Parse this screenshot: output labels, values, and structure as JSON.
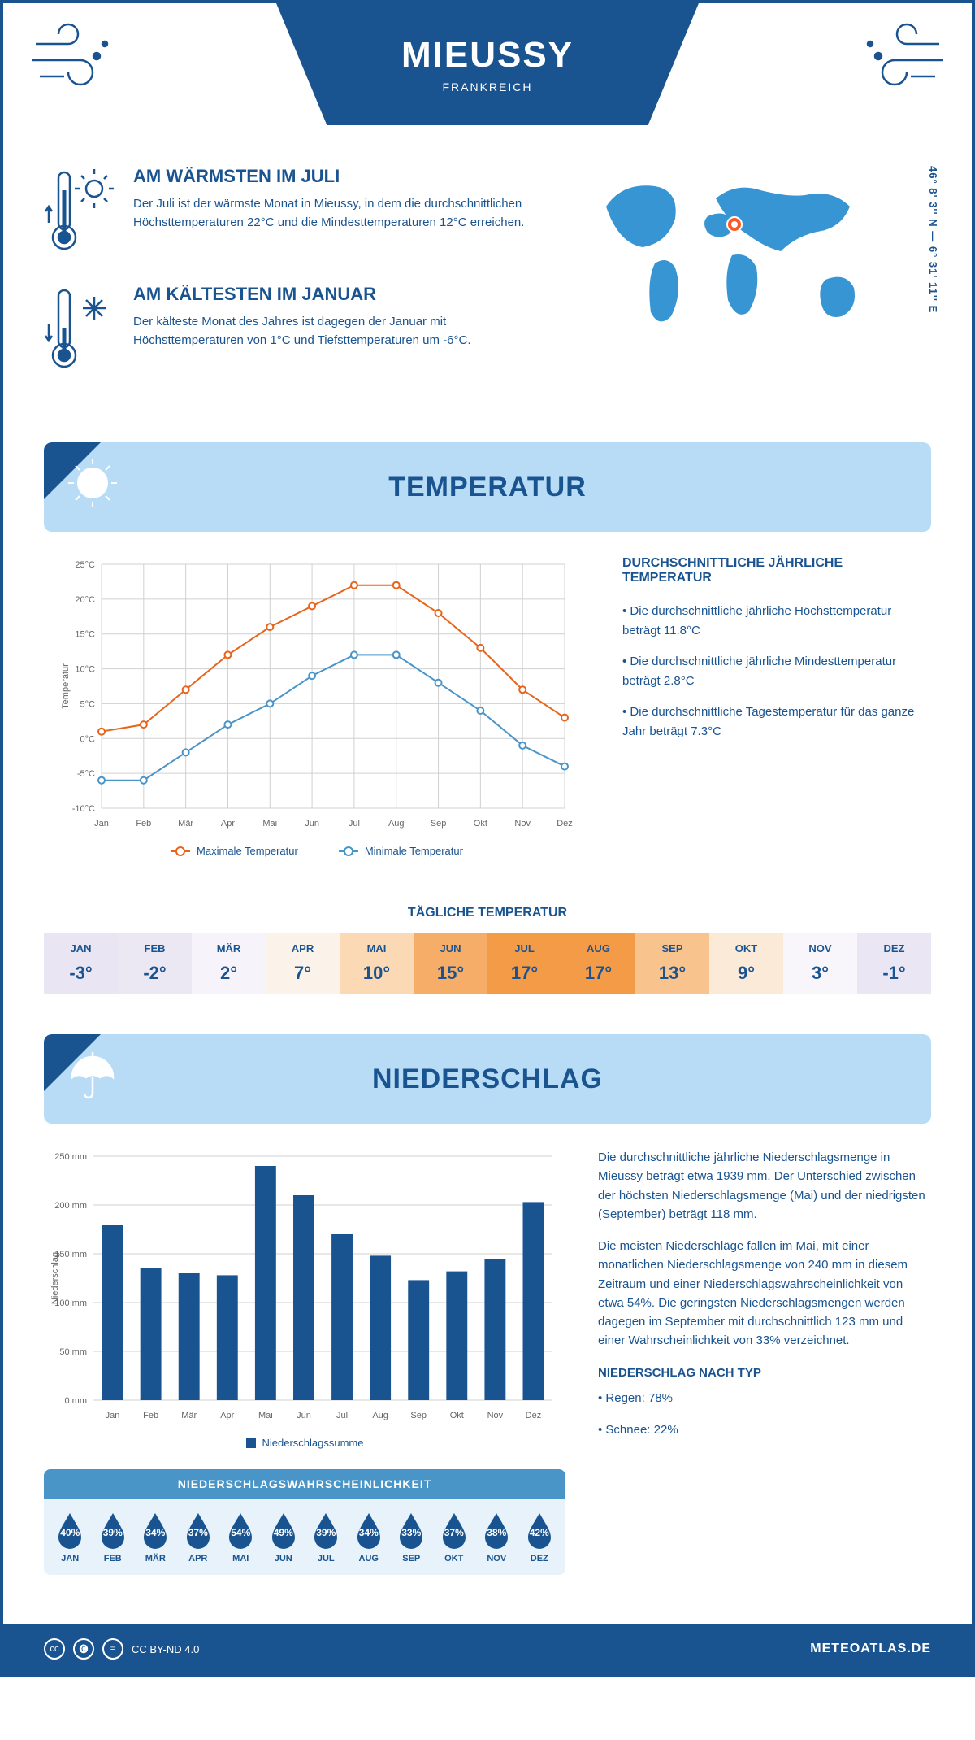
{
  "header": {
    "title": "MIEUSSY",
    "subtitle": "FRANKREICH",
    "coordinates": "46° 8' 3'' N — 6° 31' 11'' E"
  },
  "facts": {
    "warmest": {
      "title": "AM WÄRMSTEN IM JULI",
      "text": "Der Juli ist der wärmste Monat in Mieussy, in dem die durchschnittlichen Höchsttemperaturen 22°C und die Mindesttemperaturen 12°C erreichen."
    },
    "coldest": {
      "title": "AM KÄLTESTEN IM JANUAR",
      "text": "Der kälteste Monat des Jahres ist dagegen der Januar mit Höchsttemperaturen von 1°C und Tiefsttemperaturen um -6°C."
    }
  },
  "temperature": {
    "banner_title": "TEMPERATUR",
    "chart": {
      "months": [
        "Jan",
        "Feb",
        "Mär",
        "Apr",
        "Mai",
        "Jun",
        "Jul",
        "Aug",
        "Sep",
        "Okt",
        "Nov",
        "Dez"
      ],
      "max_series": [
        1,
        2,
        7,
        12,
        16,
        19,
        22,
        22,
        18,
        13,
        7,
        3
      ],
      "min_series": [
        -6,
        -6,
        -2,
        2,
        5,
        9,
        12,
        12,
        8,
        4,
        -1,
        -4
      ],
      "ylabel": "Temperatur",
      "ylim": [
        -10,
        25
      ],
      "ytick_step": 5,
      "max_color": "#e8641b",
      "min_color": "#4a95c8",
      "grid_color": "#d0d0d0",
      "background": "#ffffff",
      "marker_radius": 4,
      "line_width": 2,
      "font_size": 11
    },
    "legend": {
      "max": "Maximale Temperatur",
      "min": "Minimale Temperatur"
    },
    "summary": {
      "title": "DURCHSCHNITTLICHE JÄHRLICHE TEMPERATUR",
      "bullet1": "• Die durchschnittliche jährliche Höchsttemperatur beträgt 11.8°C",
      "bullet2": "• Die durchschnittliche jährliche Mindesttemperatur beträgt 2.8°C",
      "bullet3": "• Die durchschnittliche Tagestemperatur für das ganze Jahr beträgt 7.3°C"
    },
    "daily": {
      "title": "TÄGLICHE TEMPERATUR",
      "months": [
        "JAN",
        "FEB",
        "MÄR",
        "APR",
        "MAI",
        "JUN",
        "JUL",
        "AUG",
        "SEP",
        "OKT",
        "NOV",
        "DEZ"
      ],
      "values": [
        "-3°",
        "-2°",
        "2°",
        "7°",
        "10°",
        "15°",
        "17°",
        "17°",
        "13°",
        "9°",
        "3°",
        "-1°"
      ],
      "colors": [
        "#e9e5f2",
        "#ebe7f3",
        "#f6f4fa",
        "#fbf2ea",
        "#fbd9b4",
        "#f6ad67",
        "#f39b47",
        "#f39b47",
        "#f9c38e",
        "#fcead9",
        "#f8f6fb",
        "#eae6f3"
      ]
    }
  },
  "precipitation": {
    "banner_title": "NIEDERSCHLAG",
    "chart": {
      "months": [
        "Jan",
        "Feb",
        "Mär",
        "Apr",
        "Mai",
        "Jun",
        "Jul",
        "Aug",
        "Sep",
        "Okt",
        "Nov",
        "Dez"
      ],
      "values": [
        180,
        135,
        130,
        128,
        240,
        210,
        170,
        148,
        123,
        132,
        145,
        203
      ],
      "ylabel": "Niederschlag",
      "ylim": [
        0,
        250
      ],
      "ytick_step": 50,
      "bar_color": "#1a5490",
      "grid_color": "#d0d0d0",
      "bar_width_ratio": 0.55,
      "font_size": 11,
      "legend_label": "Niederschlagssumme"
    },
    "text": {
      "p1": "Die durchschnittliche jährliche Niederschlagsmenge in Mieussy beträgt etwa 1939 mm. Der Unterschied zwischen der höchsten Niederschlagsmenge (Mai) und der niedrigsten (September) beträgt 118 mm.",
      "p2": "Die meisten Niederschläge fallen im Mai, mit einer monatlichen Niederschlagsmenge von 240 mm in diesem Zeitraum und einer Niederschlagswahrscheinlichkeit von etwa 54%. Die geringsten Niederschlagsmengen werden dagegen im September mit durchschnittlich 123 mm und einer Wahrscheinlichkeit von 33% verzeichnet.",
      "type_title": "NIEDERSCHLAG NACH TYP",
      "type1": "• Regen: 78%",
      "type2": "• Schnee: 22%"
    },
    "probability": {
      "title": "NIEDERSCHLAGSWAHRSCHEINLICHKEIT",
      "months": [
        "JAN",
        "FEB",
        "MÄR",
        "APR",
        "MAI",
        "JUN",
        "JUL",
        "AUG",
        "SEP",
        "OKT",
        "NOV",
        "DEZ"
      ],
      "values": [
        "40%",
        "39%",
        "34%",
        "37%",
        "54%",
        "49%",
        "39%",
        "34%",
        "33%",
        "37%",
        "38%",
        "42%"
      ],
      "drop_color": "#1a5490",
      "header_bg": "#4a95c8",
      "row_bg": "#e8f2fa"
    }
  },
  "footer": {
    "license": "CC BY-ND 4.0",
    "site": "METEOATLAS.DE"
  },
  "colors": {
    "primary": "#1a5490",
    "light_blue": "#b8dcf5",
    "accent": "#4a95c8"
  }
}
